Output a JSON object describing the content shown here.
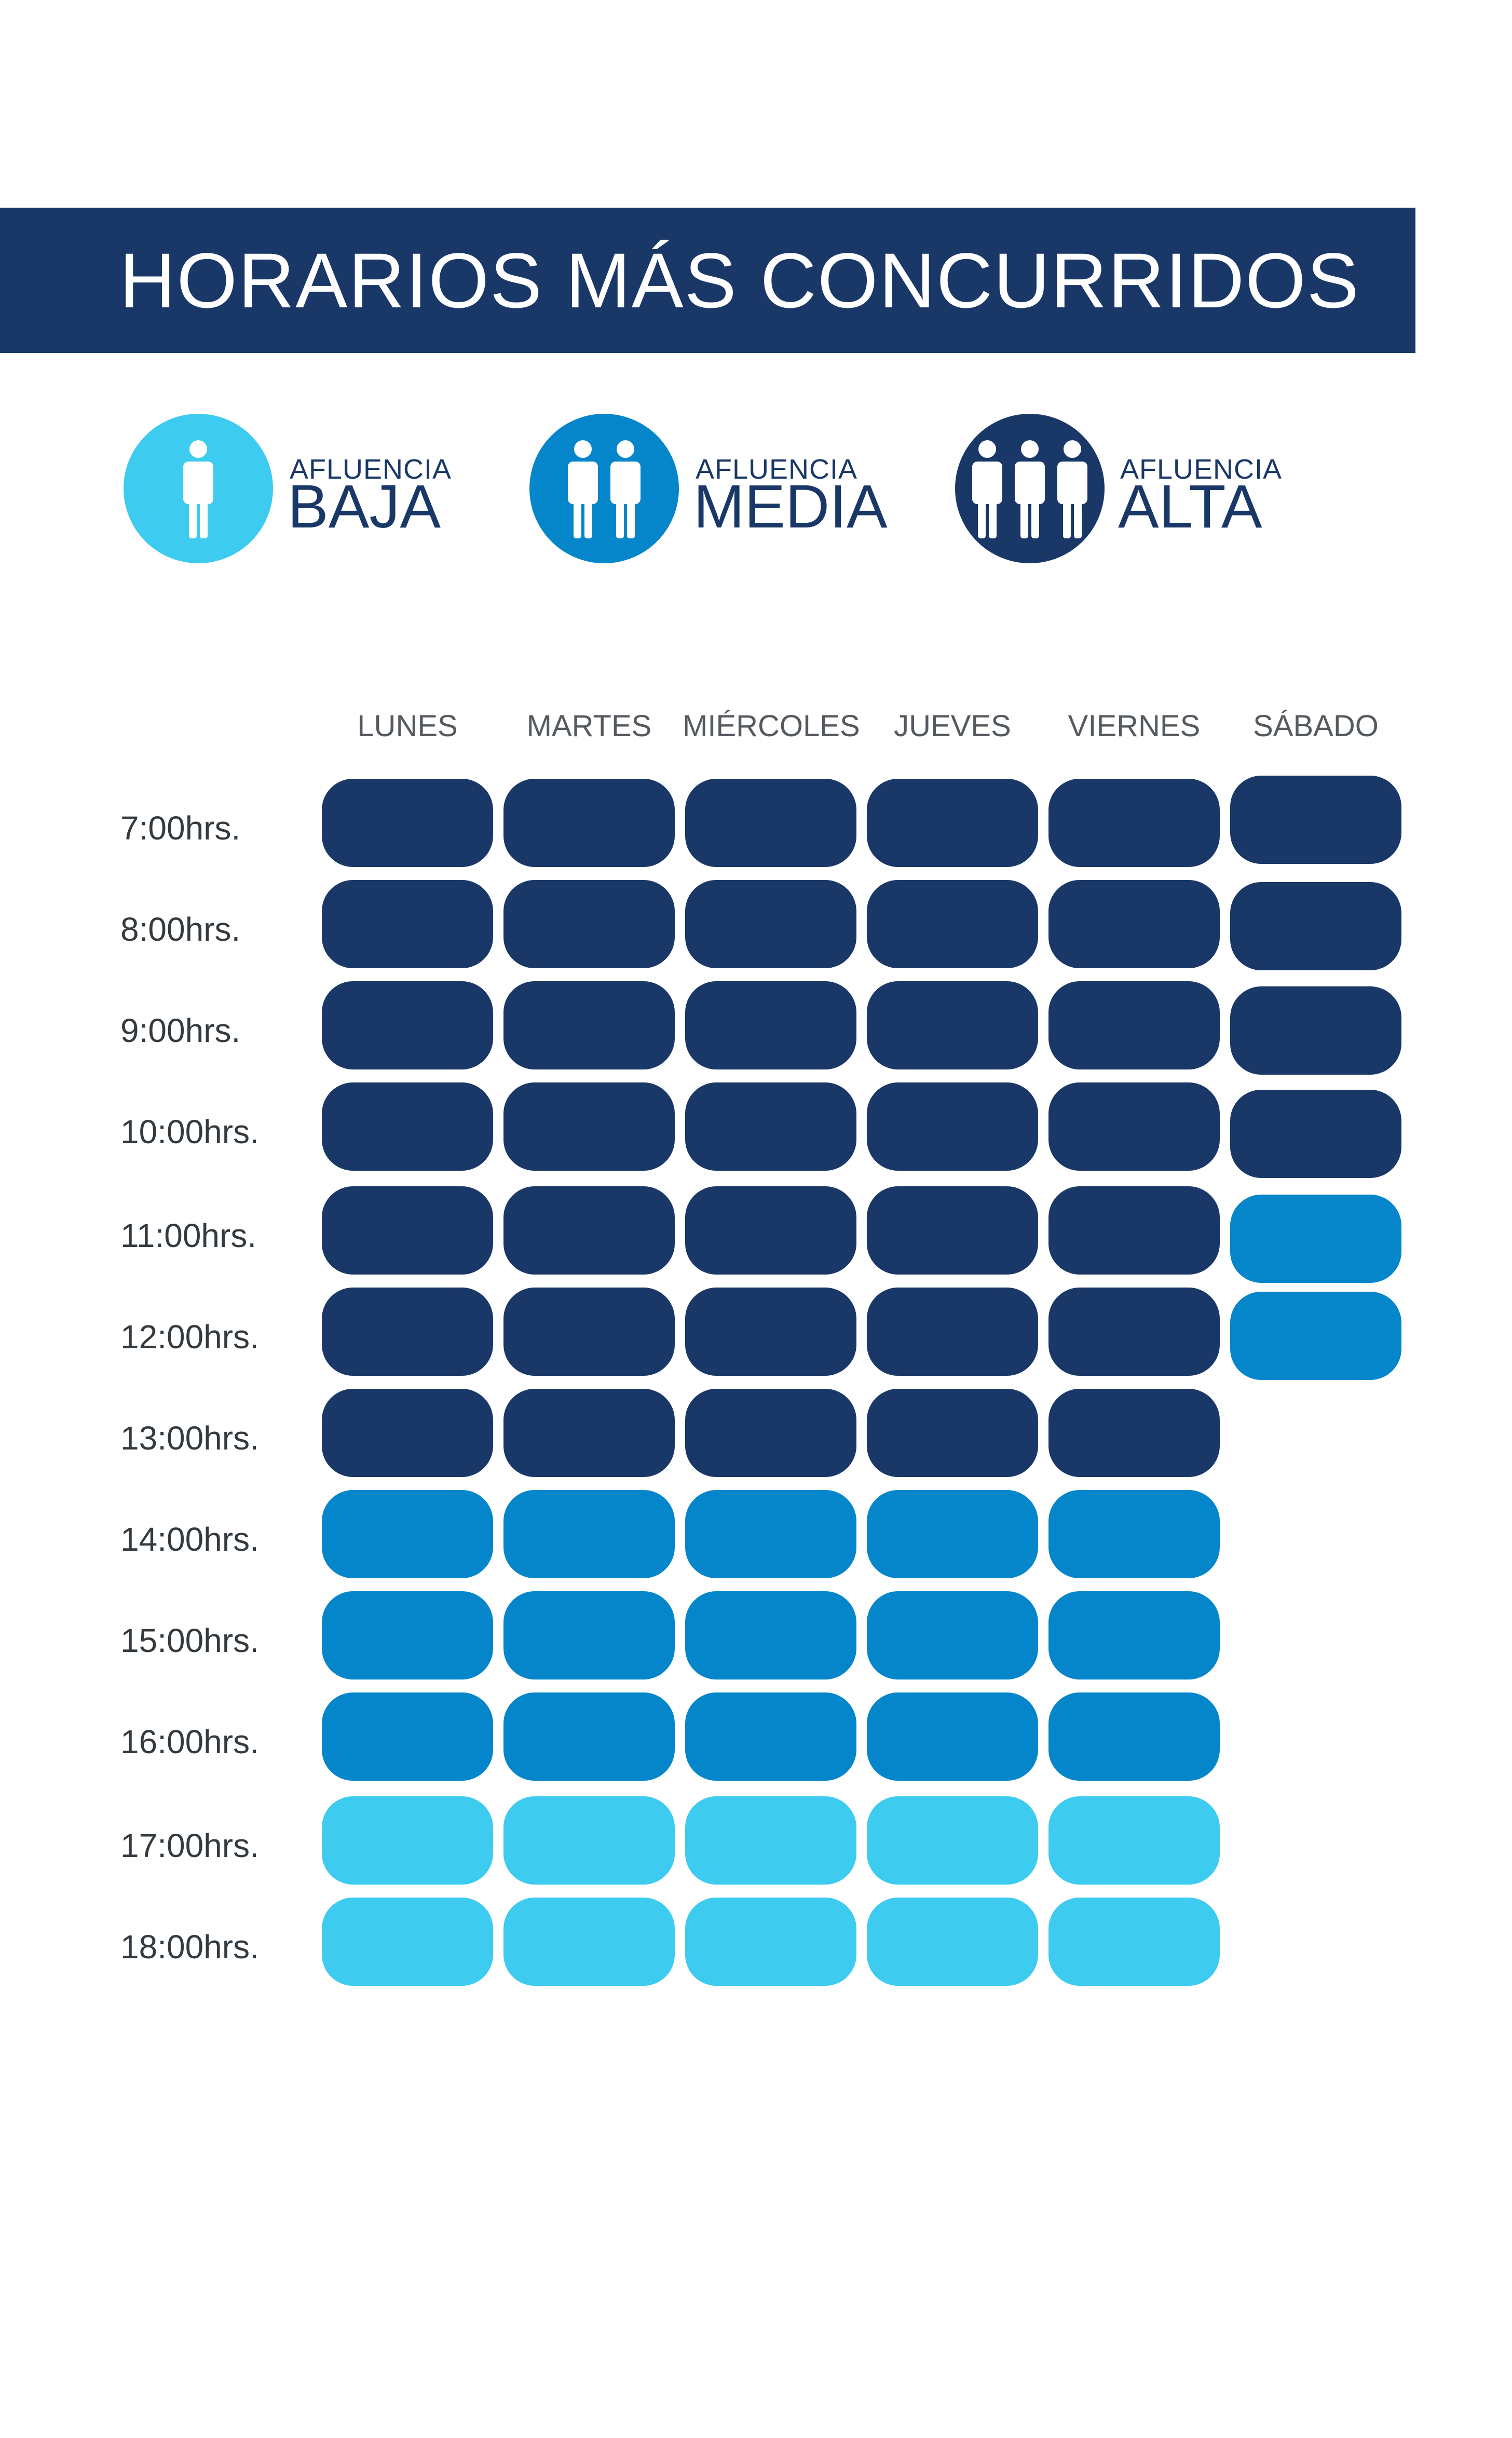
{
  "title": "HORARIOS MÁS CONCURRIDOS",
  "legend": [
    {
      "key": "baja",
      "small": "AFLUENCIA",
      "big": "BAJA",
      "icon": "one-person-icon",
      "color": "#3ecbf0"
    },
    {
      "key": "media",
      "small": "AFLUENCIA",
      "big": "MEDIA",
      "icon": "two-people-icon",
      "color": "#0586cb"
    },
    {
      "key": "alta",
      "small": "AFLUENCIA",
      "big": "ALTA",
      "icon": "three-people-icon",
      "color": "#1a3867"
    }
  ],
  "chart_data": {
    "type": "heatmap",
    "title": "HORARIOS MÁS CONCURRIDOS",
    "levels": {
      "baja": "#3ecbf0",
      "media": "#0586cb",
      "alta": "#1a3867"
    },
    "days": [
      "LUNES",
      "MARTES",
      "MIÉRCOLES",
      "JUEVES",
      "VIERNES",
      "SÁBADO"
    ],
    "hours": [
      "7:00hrs.",
      "8:00hrs.",
      "9:00hrs.",
      "10:00hrs.",
      "11:00hrs.",
      "12:00hrs.",
      "13:00hrs.",
      "14:00hrs.",
      "15:00hrs.",
      "16:00hrs.",
      "17:00hrs.",
      "18:00hrs."
    ],
    "values": [
      [
        "alta",
        "alta",
        "alta",
        "alta",
        "alta",
        "alta"
      ],
      [
        "alta",
        "alta",
        "alta",
        "alta",
        "alta",
        "alta"
      ],
      [
        "alta",
        "alta",
        "alta",
        "alta",
        "alta",
        "alta"
      ],
      [
        "alta",
        "alta",
        "alta",
        "alta",
        "alta",
        "alta"
      ],
      [
        "alta",
        "alta",
        "alta",
        "alta",
        "alta",
        "media"
      ],
      [
        "alta",
        "alta",
        "alta",
        "alta",
        "alta",
        "media"
      ],
      [
        "alta",
        "alta",
        "alta",
        "alta",
        "alta",
        null
      ],
      [
        "media",
        "media",
        "media",
        "media",
        "media",
        null
      ],
      [
        "media",
        "media",
        "media",
        "media",
        "media",
        null
      ],
      [
        "media",
        "media",
        "media",
        "media",
        "media",
        null
      ],
      [
        "baja",
        "baja",
        "baja",
        "baja",
        "baja",
        null
      ],
      [
        "baja",
        "baja",
        "baja",
        "baja",
        "baja",
        null
      ]
    ]
  }
}
